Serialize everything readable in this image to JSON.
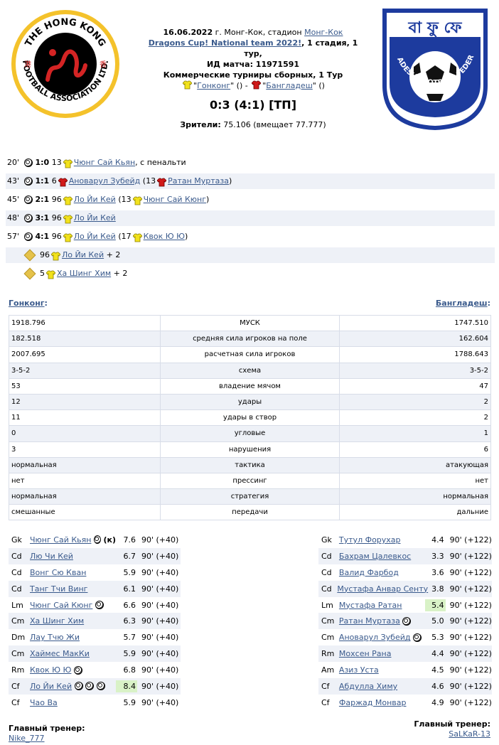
{
  "match": {
    "line1_date": "16.06.2022",
    "line1_venue": "г. Монг-Кок, стадион",
    "stadium_link": "Монг-Кок",
    "tournament_link": "Dragons Cup! National team 2022!",
    "stage": ", 1 стадия, 1 тур,",
    "match_id": "ИД матча: 11971591",
    "competition": "Коммерческие турниры сборных, 1 Тур",
    "home_name": "Гонконг",
    "away_name": "Бангладеш",
    "home_suffix": "\" () -",
    "away_suffix": "\" ()",
    "quote_open": "\"",
    "score": "0:3 (4:1) [ТП]",
    "attendance_label": "Зрители:",
    "attendance_value": "75.106 (вмещает 77.777)"
  },
  "logos": {
    "home_text": "THE HONG KONG FOOTBALL ASSOCIATION LTD.",
    "away_text": "BANGLADESH FOOTBALL FEDERATION"
  },
  "goals": [
    {
      "min": "20'",
      "score": "1:0",
      "num": "13",
      "team": "home",
      "player": "Чюнг Сай Кьян",
      "after": ", с пенальти",
      "assist_num": "",
      "assist_team": "",
      "assist": "",
      "close": ""
    },
    {
      "min": "43'",
      "score": "1:1",
      "num": "6",
      "team": "away",
      "player": "Ановарул Зубейд",
      "after": "",
      "assist_num": "(13",
      "assist_team": "away",
      "assist": "Ратан Муртаза",
      "close": ")"
    },
    {
      "min": "45'",
      "score": "2:1",
      "num": "96",
      "team": "home",
      "player": "Ло Йи Кей",
      "after": "",
      "assist_num": "(13",
      "assist_team": "home",
      "assist": "Чюнг Сай Кюнг",
      "close": ")"
    },
    {
      "min": "48'",
      "score": "3:1",
      "num": "96",
      "team": "home",
      "player": "Ло Йи Кей",
      "after": "",
      "assist_num": "",
      "assist_team": "",
      "assist": "",
      "close": ""
    },
    {
      "min": "57'",
      "score": "4:1",
      "num": "96",
      "team": "home",
      "player": "Ло Йи Кей",
      "after": "",
      "assist_num": "(17",
      "assist_team": "home",
      "assist": "Квок Ю Ю",
      "close": ")"
    }
  ],
  "extras": [
    {
      "num": "96",
      "player": "Ло Йи Кей",
      "after": "+ 2"
    },
    {
      "num": "5",
      "player": "Ха Шинг Хим",
      "after": "+ 2"
    }
  ],
  "teams": {
    "home": "Гонконг",
    "away": "Бангладеш",
    "colon": ":"
  },
  "stats": [
    {
      "home": "1918.796",
      "label": "МУСК",
      "away": "1747.510"
    },
    {
      "home": "182.518",
      "label": "средняя сила игроков на поле",
      "away": "162.604"
    },
    {
      "home": "2007.695",
      "label": "расчетная сила игроков",
      "away": "1788.643"
    },
    {
      "home": "3-5-2",
      "label": "схема",
      "away": "3-5-2"
    },
    {
      "home": "53",
      "label": "владение мячом",
      "away": "47"
    },
    {
      "home": "12",
      "label": "удары",
      "away": "2"
    },
    {
      "home": "11",
      "label": "удары в створ",
      "away": "2"
    },
    {
      "home": "0",
      "label": "угловые",
      "away": "1"
    },
    {
      "home": "3",
      "label": "нарушения",
      "away": "6"
    },
    {
      "home": "нормальная",
      "label": "тактика",
      "away": "атакующая"
    },
    {
      "home": "нет",
      "label": "прессинг",
      "away": "нет"
    },
    {
      "home": "нормальная",
      "label": "стратегия",
      "away": "нормальная"
    },
    {
      "home": "смешанные",
      "label": "передачи",
      "away": "дальние"
    }
  ],
  "home_lineup": [
    {
      "pos": "Gk",
      "name": "Чюнг Сай Кьян",
      "balls": 1,
      "extra": "(к)",
      "rating": "7.6",
      "mins": "90' (+40)",
      "good": false
    },
    {
      "pos": "Cd",
      "name": "Лю Чи Кей",
      "balls": 0,
      "extra": "",
      "rating": "6.7",
      "mins": "90' (+40)",
      "good": false
    },
    {
      "pos": "Cd",
      "name": "Вонг Сю Кван",
      "balls": 0,
      "extra": "",
      "rating": "5.9",
      "mins": "90' (+40)",
      "good": false
    },
    {
      "pos": "Cd",
      "name": "Танг Тчи Винг",
      "balls": 0,
      "extra": "",
      "rating": "6.1",
      "mins": "90' (+40)",
      "good": false
    },
    {
      "pos": "Lm",
      "name": "Чюнг Сай Кюнг",
      "balls": 1,
      "extra": "",
      "rating": "6.6",
      "mins": "90' (+40)",
      "good": false
    },
    {
      "pos": "Cm",
      "name": "Ха Шинг Хим",
      "balls": 0,
      "extra": "",
      "rating": "6.3",
      "mins": "90' (+40)",
      "good": false
    },
    {
      "pos": "Dm",
      "name": "Лау Тчю Жи",
      "balls": 0,
      "extra": "",
      "rating": "5.7",
      "mins": "90' (+40)",
      "good": false
    },
    {
      "pos": "Cm",
      "name": "Хаймес МакКи",
      "balls": 0,
      "extra": "",
      "rating": "5.9",
      "mins": "90' (+40)",
      "good": false
    },
    {
      "pos": "Rm",
      "name": "Квок Ю Ю",
      "balls": 1,
      "extra": "",
      "rating": "6.8",
      "mins": "90' (+40)",
      "good": false
    },
    {
      "pos": "Cf",
      "name": "Ло Йи Кей",
      "balls": 3,
      "extra": "",
      "rating": "8.4",
      "mins": "90' (+40)",
      "good": true
    },
    {
      "pos": "Cf",
      "name": "Чао Ва",
      "balls": 0,
      "extra": "",
      "rating": "5.9",
      "mins": "90' (+40)",
      "good": false
    }
  ],
  "away_lineup": [
    {
      "pos": "Gk",
      "name": "Тутул Форухар",
      "balls": 0,
      "extra": "",
      "rating": "4.4",
      "mins": "90' (+122)",
      "good": false
    },
    {
      "pos": "Cd",
      "name": "Бахрам Цалевкос",
      "balls": 0,
      "extra": "",
      "rating": "3.3",
      "mins": "90' (+122)",
      "good": false
    },
    {
      "pos": "Cd",
      "name": "Валид Фарбод",
      "balls": 0,
      "extra": "",
      "rating": "3.6",
      "mins": "90' (+122)",
      "good": false
    },
    {
      "pos": "Cd",
      "name": "Мустафа Анвар Сенту",
      "balls": 0,
      "extra": "",
      "rating": "3.8",
      "mins": "90' (+122)",
      "good": false
    },
    {
      "pos": "Lm",
      "name": "Мустафа Ратан",
      "balls": 0,
      "extra": "",
      "rating": "5.4",
      "mins": "90' (+122)",
      "good": true
    },
    {
      "pos": "Cm",
      "name": "Ратан Муртаза",
      "balls": 1,
      "extra": "",
      "rating": "5.0",
      "mins": "90' (+122)",
      "good": false
    },
    {
      "pos": "Cm",
      "name": "Ановарул Зубейд",
      "balls": 1,
      "extra": "",
      "rating": "5.3",
      "mins": "90' (+122)",
      "good": false
    },
    {
      "pos": "Rm",
      "name": "Мохсен Рана",
      "balls": 0,
      "extra": "",
      "rating": "4.4",
      "mins": "90' (+122)",
      "good": false
    },
    {
      "pos": "Am",
      "name": "Азиз Уста",
      "balls": 0,
      "extra": "",
      "rating": "4.5",
      "mins": "90' (+122)",
      "good": false
    },
    {
      "pos": "Cf",
      "name": "Абдулла Химу",
      "balls": 0,
      "extra": "",
      "rating": "4.6",
      "mins": "90' (+122)",
      "good": false
    },
    {
      "pos": "Cf",
      "name": "Фаржад Монвар",
      "balls": 0,
      "extra": "",
      "rating": "4.9",
      "mins": "90' (+122)",
      "good": false
    }
  ],
  "coaches": {
    "label": "Главный тренер:",
    "home": "Nike_777",
    "away": "SaLKaR-13"
  },
  "colors": {
    "home_shirt": "#f2e21c",
    "away_shirt": "#d11919",
    "link": "#3a5a8c",
    "row_alt": "#eef1f7",
    "good_rating": "#d9f2c7",
    "bfl_blue": "#1d3b9e"
  }
}
